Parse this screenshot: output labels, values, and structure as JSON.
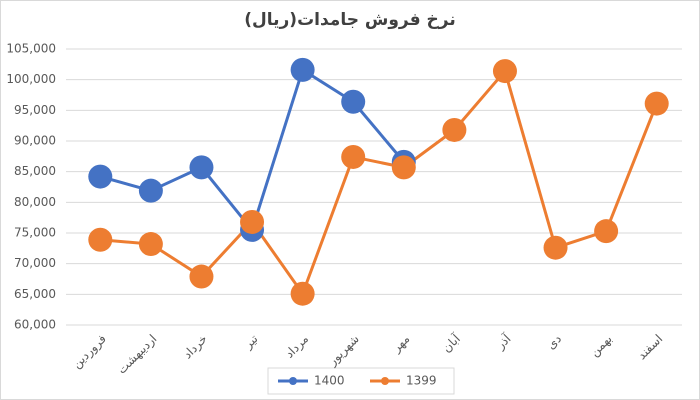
{
  "chart_data": {
    "type": "line",
    "title": "نرخ فروش جامدات(ریال)",
    "categories": [
      "فروردین",
      "اردیبهشت",
      "خرداد",
      "تیر",
      "مرداد",
      "شهریور",
      "مهر",
      "آبان",
      "آذر",
      "دی",
      "بهمن",
      "اسفند"
    ],
    "series": [
      {
        "name": "1400",
        "color": "#4472c4",
        "values": [
          84200,
          81900,
          85700,
          75500,
          101600,
          96400,
          86600,
          null,
          null,
          null,
          null,
          null
        ]
      },
      {
        "name": "1399",
        "color": "#ed7d31",
        "values": [
          73900,
          73200,
          67900,
          76800,
          65100,
          87400,
          85700,
          91800,
          101400,
          72600,
          75300,
          96100
        ]
      }
    ],
    "ylim": [
      60000,
      105000
    ],
    "yticks": [
      {
        "value": 60000,
        "label": "60,000"
      },
      {
        "value": 65000,
        "label": "65,000"
      },
      {
        "value": 70000,
        "label": "70,000"
      },
      {
        "value": 75000,
        "label": "75,000"
      },
      {
        "value": 80000,
        "label": "80,000"
      },
      {
        "value": 85000,
        "label": "85,000"
      },
      {
        "value": 90000,
        "label": "90,000"
      },
      {
        "value": 95000,
        "label": "95,000"
      },
      {
        "value": 100000,
        "label": "100,000"
      },
      {
        "value": 105000,
        "label": "105,000"
      }
    ],
    "grid": true,
    "legend": "bottom"
  }
}
